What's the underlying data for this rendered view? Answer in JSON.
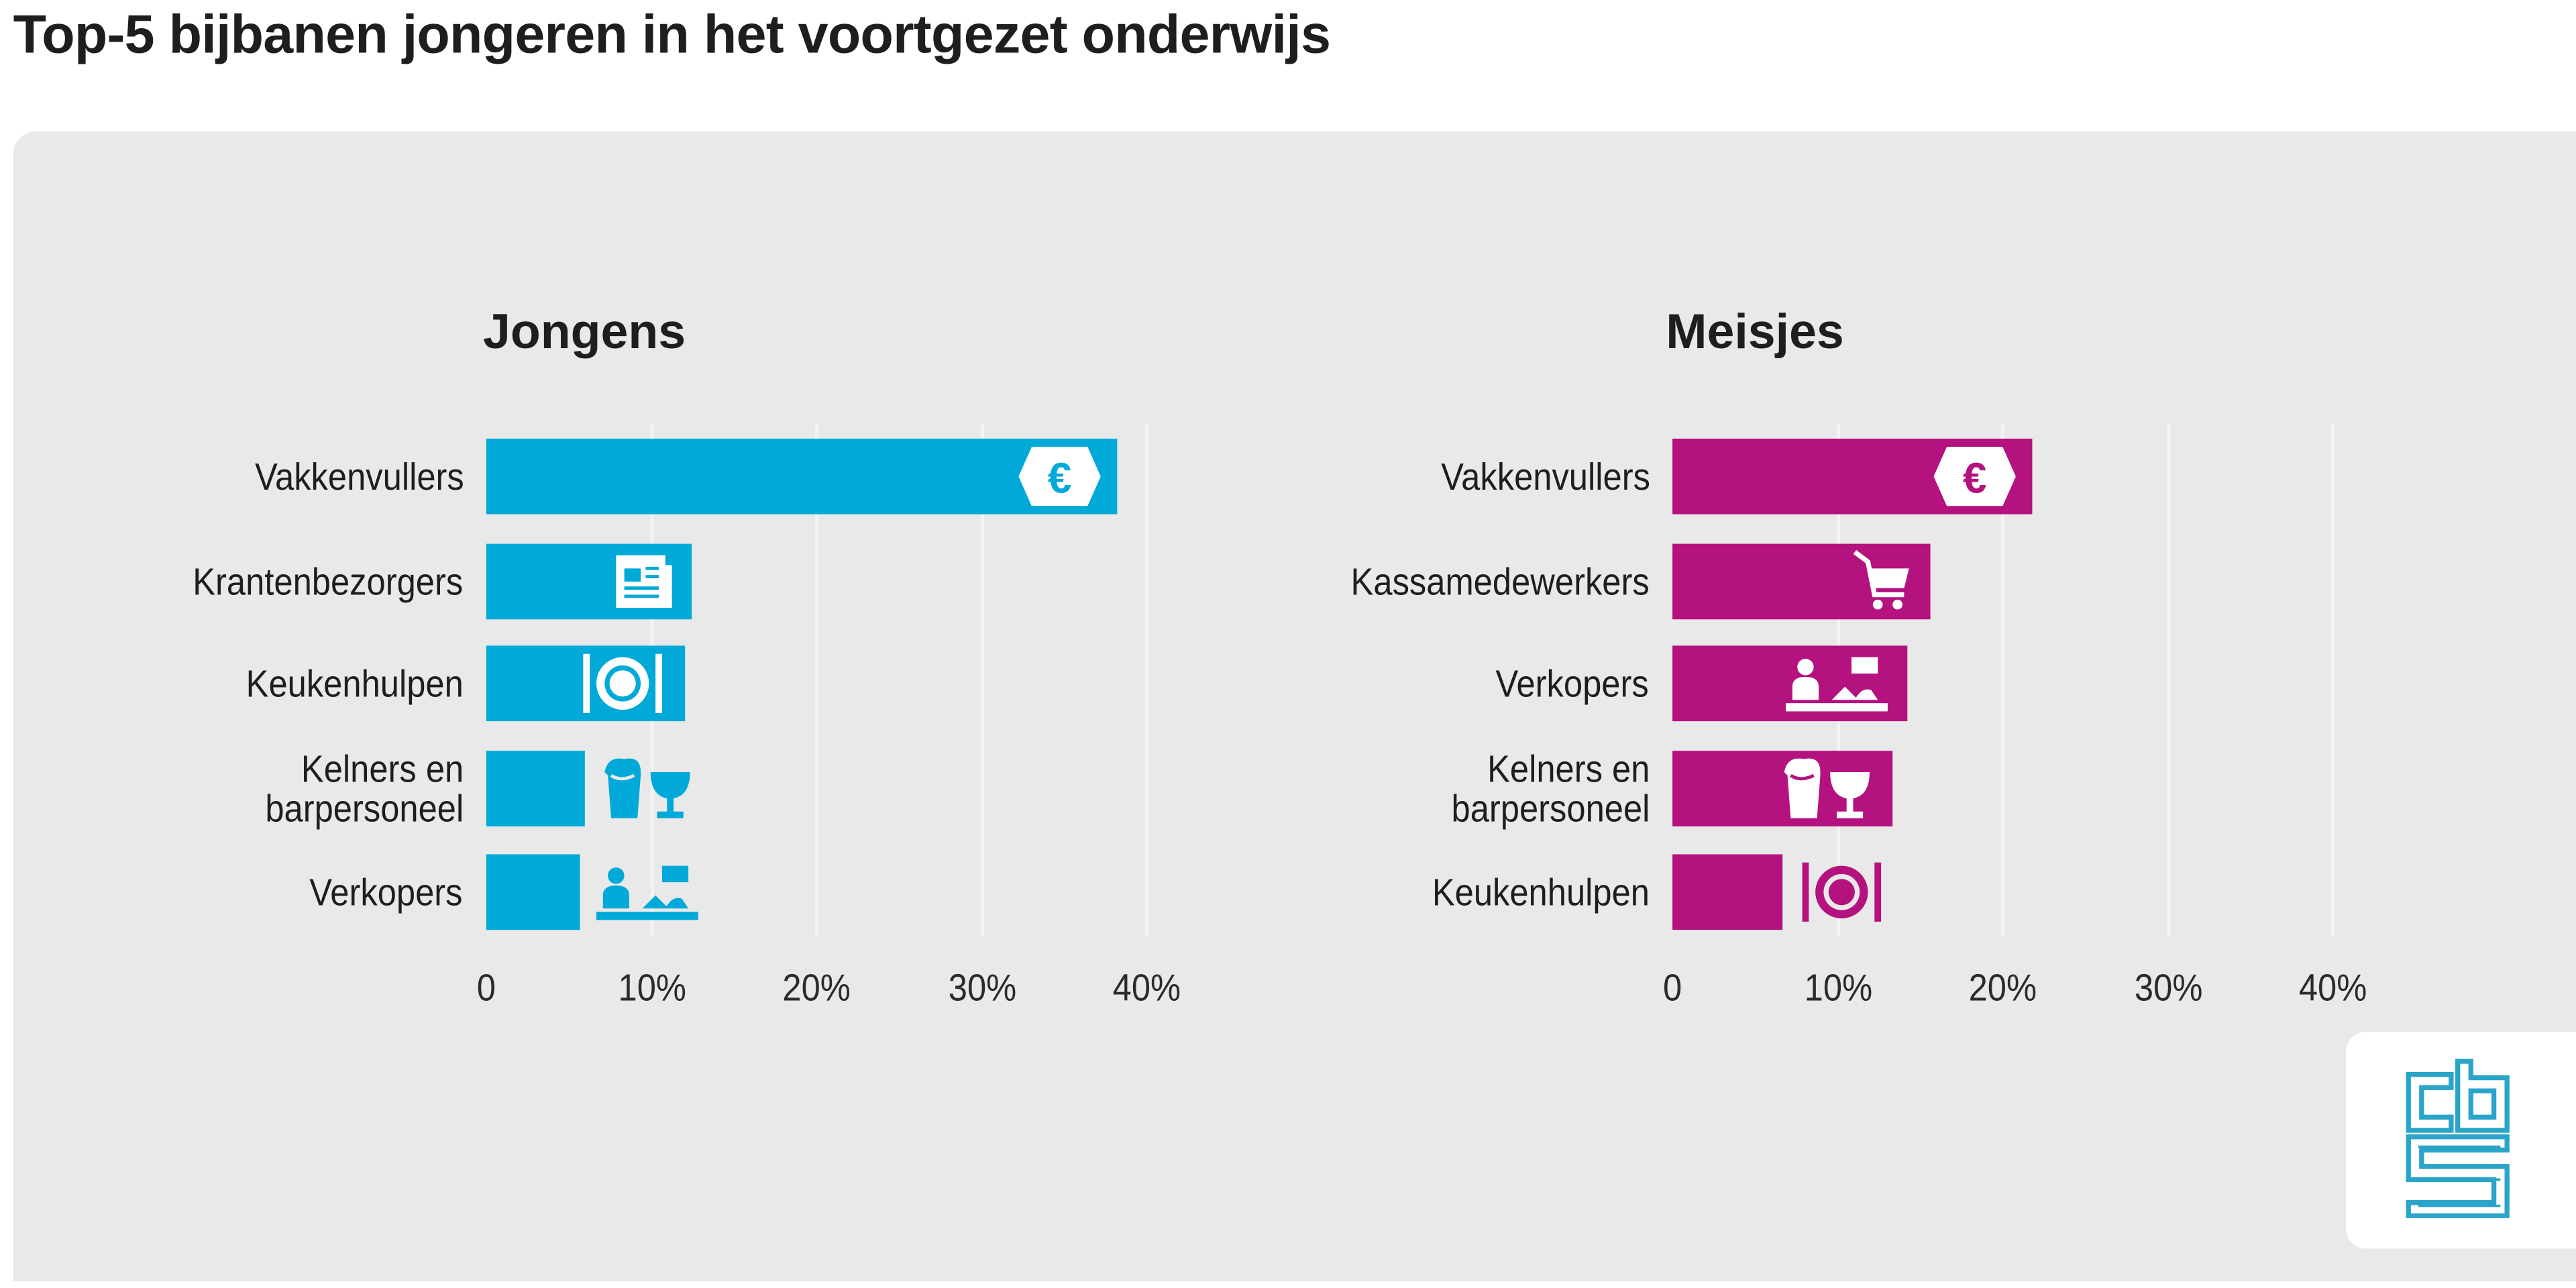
{
  "title": "Top-5 bijbanen jongeren in het voortgezet onderwijs",
  "logo_text": "cbs",
  "colors": {
    "jongens": "#00a9d8",
    "meisjes": "#b4127e",
    "panel": "#e9e9e9",
    "logo": "#2aa5c9"
  },
  "chart_data": [
    {
      "type": "bar",
      "orientation": "horizontal",
      "title": "Jongens",
      "categories": [
        "Vakkenvullers",
        "Krantenbezorgers",
        "Keukenhulpen",
        "Kelners en barpersoneel",
        "Verkopers"
      ],
      "category_lines": [
        [
          "Vakkenvullers"
        ],
        [
          "Krantenbezorgers"
        ],
        [
          "Keukenhulpen"
        ],
        [
          "Kelners en",
          "barpersoneel"
        ],
        [
          "Verkopers"
        ]
      ],
      "icons": [
        "euro-icon",
        "newspaper-icon",
        "plate-cutlery-icon",
        "drinks-icon",
        "seller-icon"
      ],
      "values": [
        38.2,
        12.4,
        12.0,
        6.0,
        5.7
      ],
      "xlim": [
        0,
        40
      ],
      "ticks": [
        0,
        10,
        20,
        30,
        40
      ],
      "tick_labels": [
        "0",
        "10%",
        "20%",
        "30%",
        "40%"
      ],
      "unit": "%",
      "grid": true
    },
    {
      "type": "bar",
      "orientation": "horizontal",
      "title": "Meisjes",
      "categories": [
        "Vakkenvullers",
        "Kassamedewerkers",
        "Verkopers",
        "Kelners en barpersoneel",
        "Keukenhulpen"
      ],
      "category_lines": [
        [
          "Vakkenvullers"
        ],
        [
          "Kassamedewerkers"
        ],
        [
          "Verkopers"
        ],
        [
          "Kelners en",
          "barpersoneel"
        ],
        [
          "Keukenhulpen"
        ]
      ],
      "icons": [
        "euro-icon",
        "cart-icon",
        "seller-icon",
        "drinks-icon",
        "plate-cutlery-icon"
      ],
      "values": [
        21.8,
        15.6,
        14.2,
        13.3,
        6.7
      ],
      "xlim": [
        0,
        40
      ],
      "ticks": [
        0,
        10,
        20,
        30,
        40
      ],
      "tick_labels": [
        "0",
        "10%",
        "20%",
        "30%",
        "40%"
      ],
      "unit": "%",
      "grid": true
    }
  ]
}
